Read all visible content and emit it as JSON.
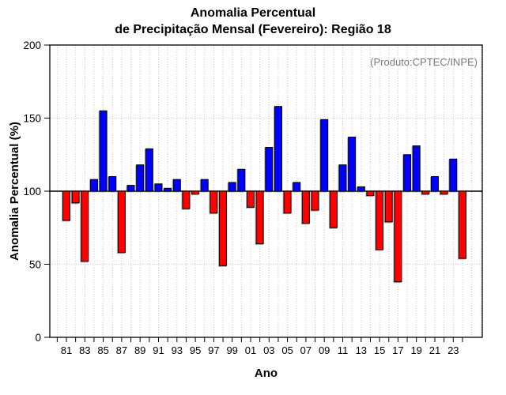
{
  "chart_data": {
    "type": "bar",
    "title_lines": [
      "Anomalia Percentual",
      "de Precipitação Mensal (Fevereiro): Região 18"
    ],
    "annotation": "(Produto:CPTEC/INPE)",
    "xlabel": "Ano",
    "ylabel": "Anomalia Percentual (%)",
    "baseline": 100,
    "ylim": [
      0,
      200
    ],
    "yticks": [
      0,
      50,
      100,
      150,
      200
    ],
    "grid": "dotted horizontal at 50 and 150, dotted vertical every year",
    "legend_position": "none",
    "x_tick_label_years": [
      "81",
      "83",
      "85",
      "87",
      "89",
      "91",
      "93",
      "95",
      "97",
      "99",
      "01",
      "03",
      "05",
      "07",
      "09",
      "11",
      "13",
      "15",
      "17",
      "19",
      "21",
      "23"
    ],
    "years": [
      1981,
      1982,
      1983,
      1984,
      1985,
      1986,
      1987,
      1988,
      1989,
      1990,
      1991,
      1992,
      1993,
      1994,
      1995,
      1996,
      1997,
      1998,
      1999,
      2000,
      2001,
      2002,
      2003,
      2004,
      2005,
      2006,
      2007,
      2008,
      2009,
      2010,
      2011,
      2012,
      2013,
      2014,
      2015,
      2016,
      2017,
      2018,
      2019,
      2020,
      2021,
      2022,
      2023,
      2024
    ],
    "values": [
      80,
      92,
      52,
      108,
      155,
      110,
      58,
      104,
      118,
      129,
      105,
      102,
      108,
      88,
      98,
      108,
      85,
      49,
      106,
      115,
      89,
      64,
      130,
      158,
      85,
      106,
      78,
      87,
      149,
      75,
      118,
      137,
      103,
      97,
      60,
      79,
      38,
      125,
      131,
      98,
      110,
      98,
      122,
      54
    ],
    "colors": {
      "above_baseline": "#0000ff",
      "below_baseline": "#ff0000",
      "bar_border": "#000000",
      "grid": "#c9c9c9",
      "axis": "#000000",
      "annotation_gray": "#7b7b7b"
    }
  }
}
